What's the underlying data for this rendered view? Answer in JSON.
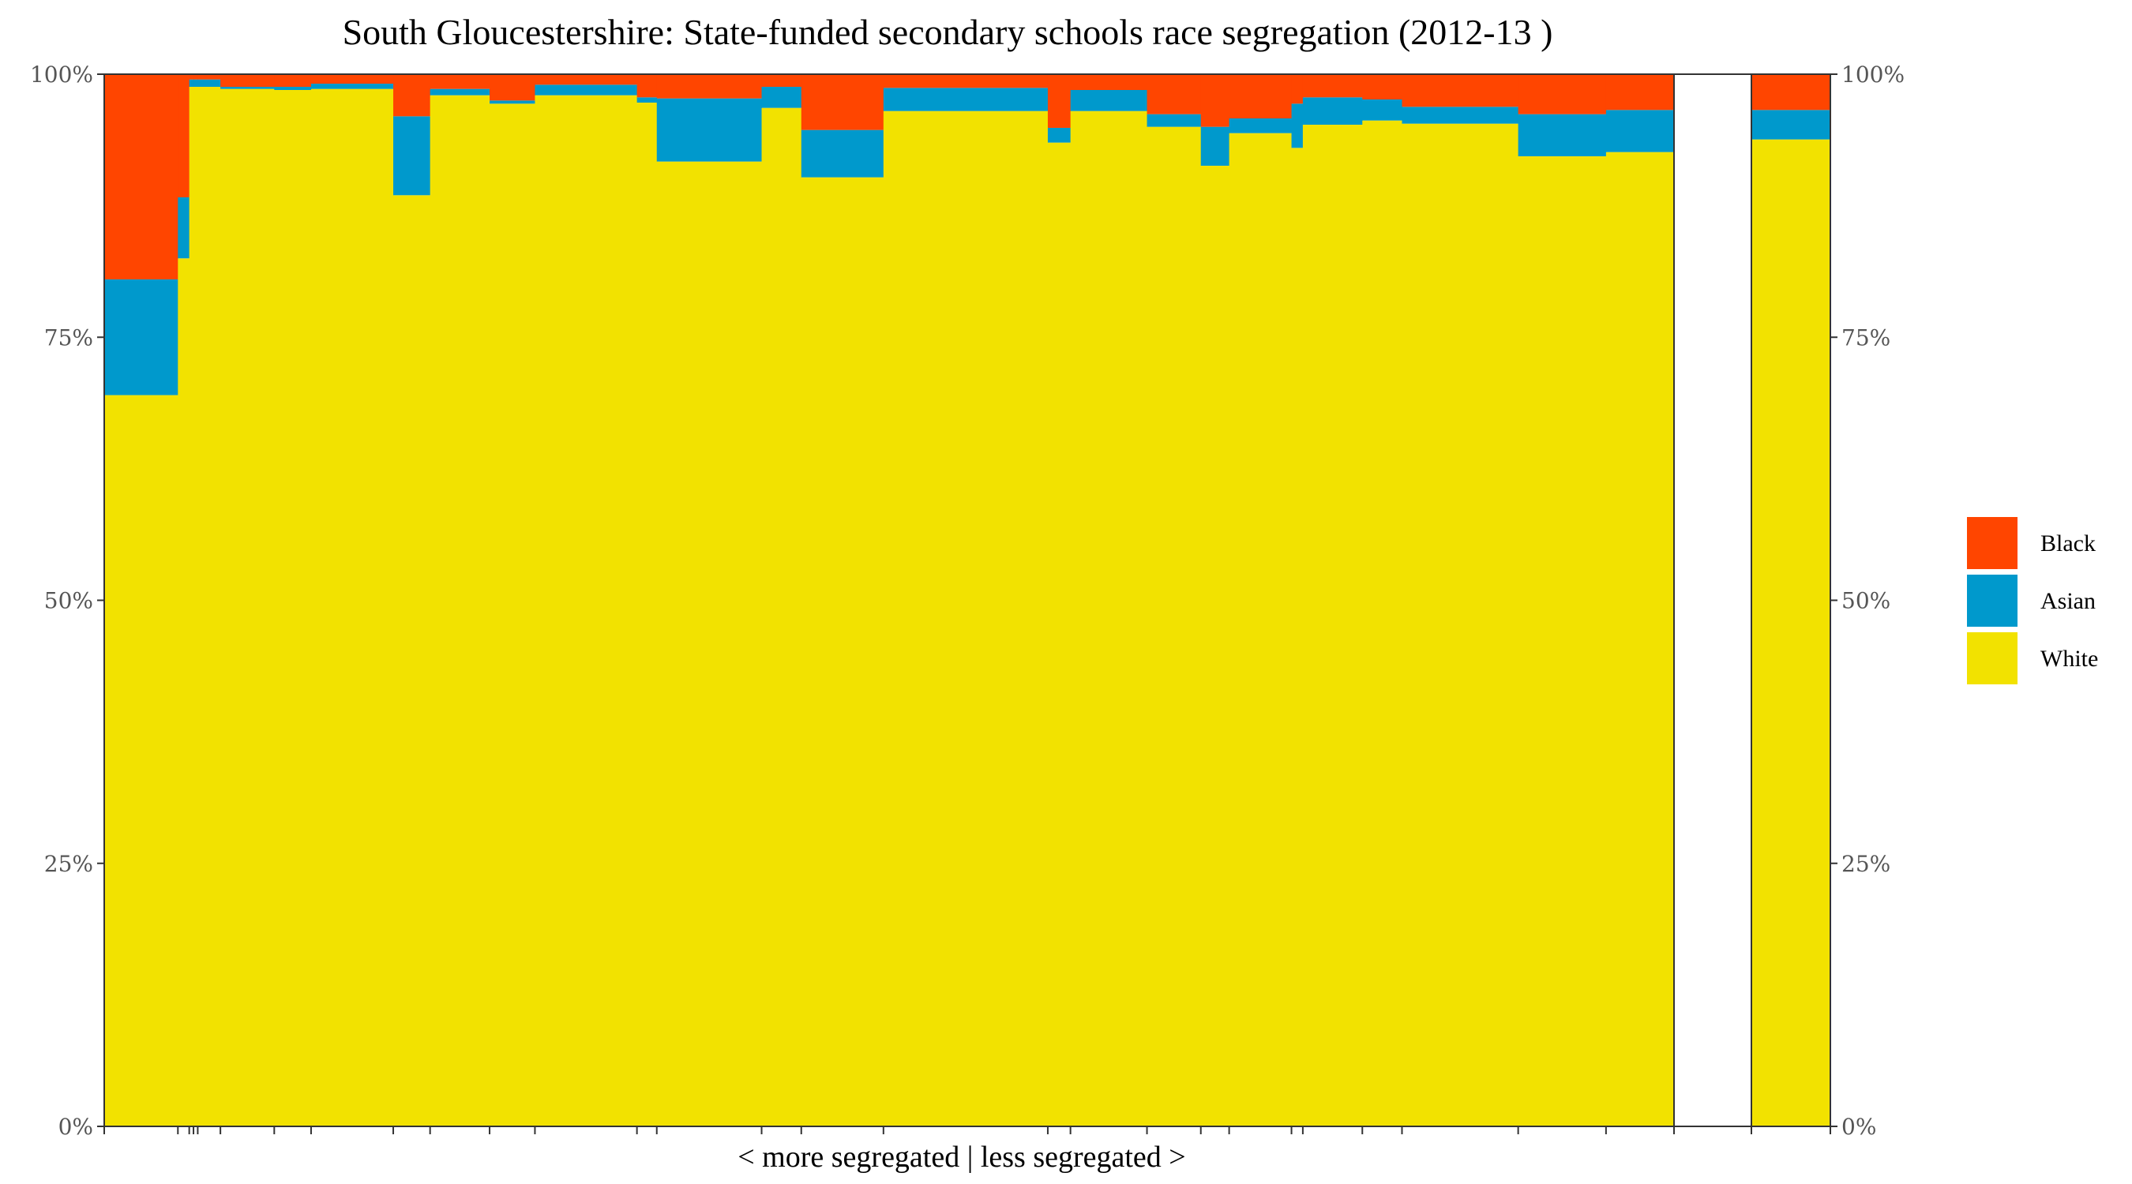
{
  "chart_data": {
    "type": "bar",
    "subtype": "stacked-proportional-variable-width",
    "title": "South Gloucestershire: State-funded secondary schools race segregation (2012-13 )",
    "xlabel": "< more segregated | less segregated >",
    "ylabel": "",
    "ylim": [
      0,
      100
    ],
    "y_ticks": [
      "0%",
      "25%",
      "50%",
      "75%",
      "100%"
    ],
    "y_axis_sides": [
      "left",
      "right"
    ],
    "grid": false,
    "legend_position": "right",
    "colors": {
      "Black": "#FF4500",
      "Asian": "#0099CC",
      "White": "#F2E200"
    },
    "series_order_top_to_bottom": [
      "Black",
      "Asian",
      "White"
    ],
    "schools": [
      {
        "width": 2.6,
        "White": 69.5,
        "Asian": 11.0,
        "Black": 19.5
      },
      {
        "width": 0.4,
        "White": 82.5,
        "Asian": 5.8,
        "Black": 11.7
      },
      {
        "width": 0.15,
        "White": 98.8,
        "Asian": 0.7,
        "Black": 0.5
      },
      {
        "width": 0.15,
        "White": 98.8,
        "Asian": 0.7,
        "Black": 0.5
      },
      {
        "width": 0.8,
        "White": 98.8,
        "Asian": 0.7,
        "Black": 0.5
      },
      {
        "width": 1.9,
        "White": 98.6,
        "Asian": 0.2,
        "Black": 1.2
      },
      {
        "width": 1.3,
        "White": 98.5,
        "Asian": 0.3,
        "Black": 1.2
      },
      {
        "width": 2.9,
        "White": 98.6,
        "Asian": 0.5,
        "Black": 0.9
      },
      {
        "width": 1.3,
        "White": 88.5,
        "Asian": 7.5,
        "Black": 4.0
      },
      {
        "width": 2.1,
        "White": 98.0,
        "Asian": 0.6,
        "Black": 1.4
      },
      {
        "width": 1.6,
        "White": 97.2,
        "Asian": 0.3,
        "Black": 2.5
      },
      {
        "width": 3.6,
        "White": 98.0,
        "Asian": 1.0,
        "Black": 1.0
      },
      {
        "width": 0.7,
        "White": 97.3,
        "Asian": 0.5,
        "Black": 2.2
      },
      {
        "width": 3.7,
        "White": 91.7,
        "Asian": 6.0,
        "Black": 2.3
      },
      {
        "width": 1.4,
        "White": 96.8,
        "Asian": 2.0,
        "Black": 1.2
      },
      {
        "width": 2.9,
        "White": 90.2,
        "Asian": 4.5,
        "Black": 5.3
      },
      {
        "width": 5.8,
        "White": 96.5,
        "Asian": 2.2,
        "Black": 1.3
      },
      {
        "width": 0.8,
        "White": 93.5,
        "Asian": 1.4,
        "Black": 5.1
      },
      {
        "width": 2.7,
        "White": 96.5,
        "Asian": 2.0,
        "Black": 1.5
      },
      {
        "width": 1.9,
        "White": 95.0,
        "Asian": 1.2,
        "Black": 3.8
      },
      {
        "width": 1.0,
        "White": 91.3,
        "Asian": 3.7,
        "Black": 5.0
      },
      {
        "width": 2.2,
        "White": 94.4,
        "Asian": 1.4,
        "Black": 4.2
      },
      {
        "width": 0.4,
        "White": 93.0,
        "Asian": 4.2,
        "Black": 2.8
      },
      {
        "width": 2.1,
        "White": 95.2,
        "Asian": 2.6,
        "Black": 2.2
      },
      {
        "width": 1.4,
        "White": 95.6,
        "Asian": 2.0,
        "Black": 2.4
      },
      {
        "width": 4.1,
        "White": 95.3,
        "Asian": 1.6,
        "Black": 3.1
      },
      {
        "width": 3.1,
        "White": 92.2,
        "Asian": 4.0,
        "Black": 3.8
      },
      {
        "width": 2.4,
        "White": 92.6,
        "Asian": 4.0,
        "Black": 3.4
      }
    ],
    "overall": {
      "label": "",
      "White": 93.8,
      "Asian": 2.8,
      "Black": 3.4
    },
    "legend": [
      {
        "name": "Black",
        "label": "Black"
      },
      {
        "name": "Asian",
        "label": "Asian"
      },
      {
        "name": "White",
        "label": "White"
      }
    ]
  }
}
